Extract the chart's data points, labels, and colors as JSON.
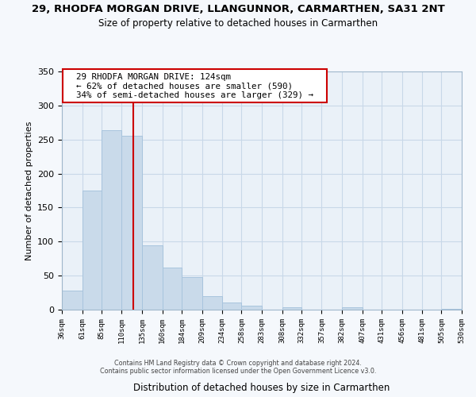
{
  "title_line1": "29, RHODFA MORGAN DRIVE, LLANGUNNOR, CARMARTHEN, SA31 2NT",
  "title_line2": "Size of property relative to detached houses in Carmarthen",
  "xlabel": "Distribution of detached houses by size in Carmarthen",
  "ylabel": "Number of detached properties",
  "bar_edges": [
    36,
    61,
    85,
    110,
    135,
    160,
    184,
    209,
    234,
    258,
    283,
    308,
    332,
    357,
    382,
    407,
    431,
    456,
    481,
    505,
    530
  ],
  "bar_heights": [
    28,
    175,
    264,
    255,
    94,
    62,
    48,
    20,
    11,
    6,
    0,
    4,
    0,
    0,
    3,
    0,
    0,
    0,
    0,
    1
  ],
  "bar_color": "#c9daea",
  "bar_edge_color": "#a8c4dd",
  "vline_x": 124,
  "vline_color": "#cc0000",
  "annotation_text": "  29 RHODFA MORGAN DRIVE: 124sqm  \n  ← 62% of detached houses are smaller (590)  \n  34% of semi-detached houses are larger (329) →  ",
  "annotation_box_color": "#ffffff",
  "annotation_box_edge": "#cc0000",
  "ylim": [
    0,
    350
  ],
  "yticks": [
    0,
    50,
    100,
    150,
    200,
    250,
    300,
    350
  ],
  "tick_labels": [
    "36sqm",
    "61sqm",
    "85sqm",
    "110sqm",
    "135sqm",
    "160sqm",
    "184sqm",
    "209sqm",
    "234sqm",
    "258sqm",
    "283sqm",
    "308sqm",
    "332sqm",
    "357sqm",
    "382sqm",
    "407sqm",
    "431sqm",
    "456sqm",
    "481sqm",
    "505sqm",
    "530sqm"
  ],
  "footer": "Contains HM Land Registry data © Crown copyright and database right 2024.\nContains public sector information licensed under the Open Government Licence v3.0.",
  "bg_color": "#f5f8fc",
  "plot_bg_color": "#eaf1f8",
  "grid_color": "#c8d8e8"
}
